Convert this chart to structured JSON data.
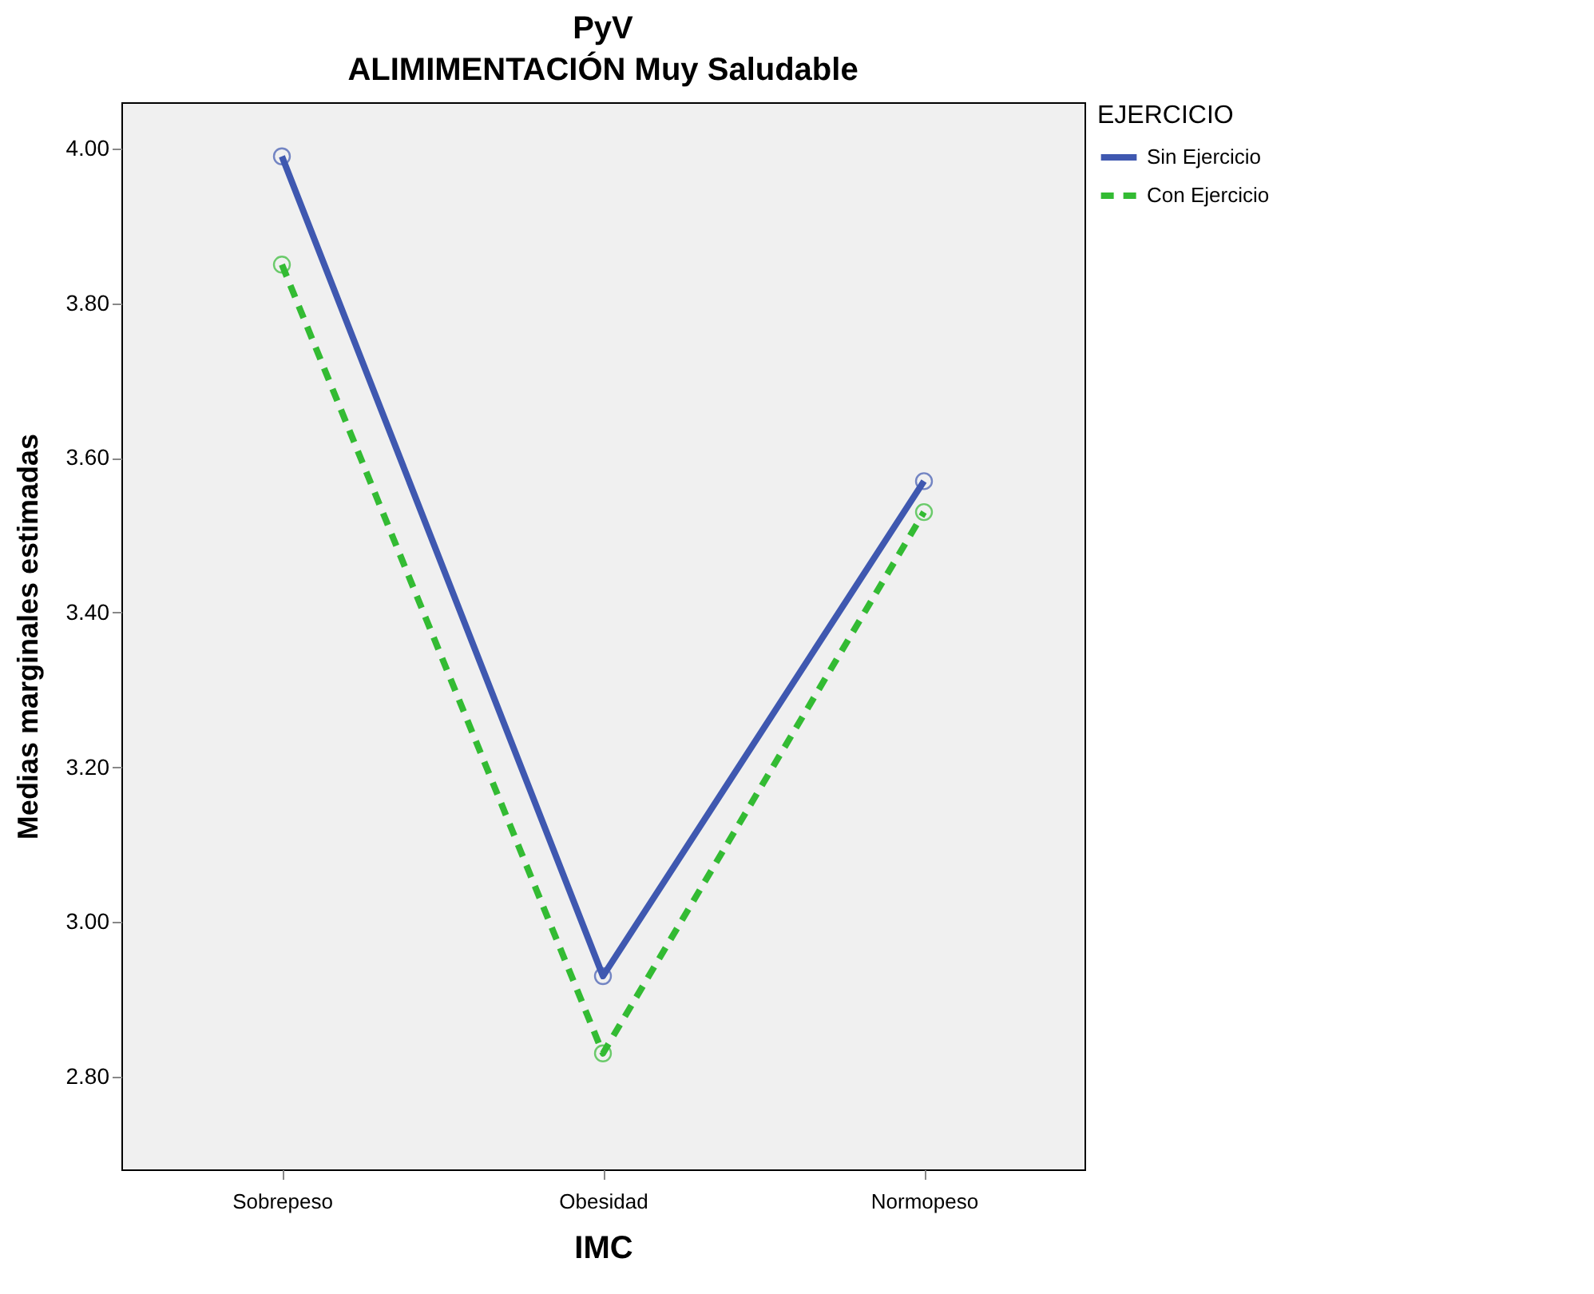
{
  "chart_data": {
    "type": "line",
    "title": "PyV",
    "subtitle": "ALIMIMENTACIÓN Muy Saludable",
    "xlabel": "IMC",
    "ylabel": "Medias marginales estimadas",
    "legend_title": "EJERCICIO",
    "categories": [
      "Sobrepeso",
      "Obesidad",
      "Normopeso"
    ],
    "series": [
      {
        "name": "Sin Ejercicio",
        "color": "#3f58b0",
        "values": [
          3.99,
          2.93,
          3.57
        ],
        "line_style": "solid"
      },
      {
        "name": "Con Ejercicio",
        "color": "#33bb33",
        "values": [
          3.85,
          2.83,
          3.53
        ],
        "line_style": "dashed"
      }
    ],
    "ylim": [
      2.68,
      4.06
    ],
    "yticks": [
      {
        "value": 2.8,
        "label": "2.80"
      },
      {
        "value": 3.0,
        "label": "3.00"
      },
      {
        "value": 3.2,
        "label": "3.20"
      },
      {
        "value": 3.4,
        "label": "3.40"
      },
      {
        "value": 3.6,
        "label": "3.60"
      },
      {
        "value": 3.8,
        "label": "3.80"
      },
      {
        "value": 4.0,
        "label": "4.00"
      }
    ],
    "grid": false,
    "legend": "top right",
    "marker": "circle"
  }
}
